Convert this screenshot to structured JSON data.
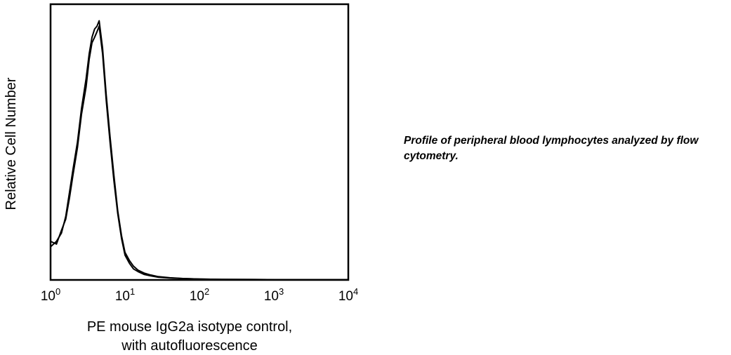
{
  "caption": "Profile of peripheral blood lymphocytes analyzed by flow cytometry.",
  "chart_data": {
    "type": "line",
    "xlabel_lines": [
      "PE mouse IgG2a isotype control,",
      "with autofluorescence"
    ],
    "ylabel": "Relative Cell Number",
    "x_scale": "log",
    "xlim": [
      1,
      10000
    ],
    "ylim": [
      0,
      100
    ],
    "x_ticks": [
      {
        "value": 1,
        "base": "10",
        "exp": "0"
      },
      {
        "value": 10,
        "base": "10",
        "exp": "1"
      },
      {
        "value": 100,
        "base": "10",
        "exp": "2"
      },
      {
        "value": 1000,
        "base": "10",
        "exp": "3"
      },
      {
        "value": 10000,
        "base": "10",
        "exp": "4"
      }
    ],
    "grid": false,
    "line_color": "#000000",
    "series": [
      {
        "x": [
          1.0,
          1.2,
          1.4,
          1.6,
          1.8,
          2.0,
          2.3,
          2.6,
          3.0,
          3.3,
          3.6,
          3.9,
          4.2,
          4.5,
          5.0,
          5.6,
          6.3,
          7.1,
          8.0,
          9.0,
          10.0,
          11.5,
          13.0,
          15.0,
          18.0,
          22.0,
          28.0,
          40.0,
          60.0,
          100.0,
          200.0,
          500.0,
          1000.0,
          3000.0,
          10000.0
        ],
        "y": [
          14,
          13,
          18,
          22,
          30,
          38,
          48,
          60,
          70,
          80,
          86,
          88,
          90,
          92,
          82,
          65,
          50,
          36,
          24,
          15,
          9,
          6,
          4,
          3,
          2,
          1.5,
          1.0,
          0.7,
          0.5,
          0.3,
          0.2,
          0.15,
          0.1,
          0.1,
          0.1
        ]
      },
      {
        "x": [
          1.0,
          1.2,
          1.4,
          1.6,
          1.8,
          2.0,
          2.3,
          2.6,
          3.0,
          3.3,
          3.6,
          3.9,
          4.2,
          4.5,
          5.0,
          5.6,
          6.3,
          7.1,
          8.0,
          9.0,
          10.0,
          11.5,
          13.0,
          15.0,
          18.0,
          22.0,
          28.0,
          40.0,
          60.0,
          100.0,
          200.0,
          500.0,
          1000.0,
          3000.0,
          10000.0
        ],
        "y": [
          12,
          14,
          17,
          23,
          32,
          40,
          50,
          62,
          73,
          82,
          88,
          91,
          92,
          94,
          84,
          67,
          52,
          38,
          25,
          16,
          10,
          7,
          5,
          3.5,
          2.5,
          1.8,
          1.2,
          0.8,
          0.5,
          0.3,
          0.2,
          0.15,
          0.1,
          0.1,
          0.1
        ]
      }
    ]
  }
}
